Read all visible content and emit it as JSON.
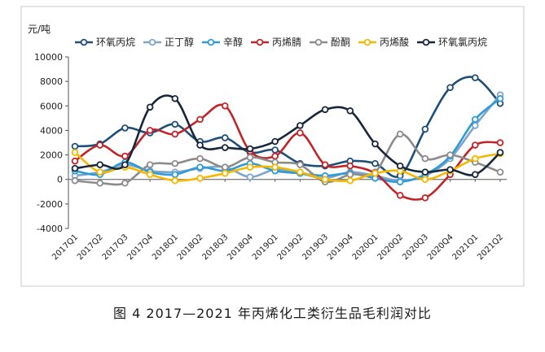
{
  "figure": {
    "caption": "图 4  2017—2021 年丙烯化工类衍生品毛利润对比"
  },
  "chart_data": {
    "type": "line",
    "unit_label": "元/吨",
    "ylim": [
      -4000,
      10000
    ],
    "yticks": [
      -4000,
      -2000,
      0,
      2000,
      4000,
      6000,
      8000,
      10000
    ],
    "legend_position": "top",
    "grid": false,
    "categories": [
      "2017Q1",
      "2017Q2",
      "2017Q3",
      "2017Q4",
      "2018Q1",
      "2018Q2",
      "2018Q3",
      "2018Q4",
      "2019Q1",
      "2019Q2",
      "2019Q3",
      "2019Q4",
      "2020Q1",
      "2020Q2",
      "2020Q3",
      "2020Q4",
      "2021Q1",
      "2021Q2"
    ],
    "series": [
      {
        "name": "环氧丙烷",
        "color": "#1f4e79",
        "values": [
          2700,
          2900,
          4200,
          3800,
          4500,
          3100,
          3400,
          2200,
          2400,
          1300,
          1100,
          1500,
          1300,
          300,
          4100,
          7500,
          8300,
          6200
        ]
      },
      {
        "name": "正丁醇",
        "color": "#7fa6c9",
        "values": [
          300,
          600,
          1200,
          700,
          600,
          900,
          1000,
          200,
          800,
          500,
          100,
          600,
          300,
          -100,
          300,
          1700,
          4400,
          6900
        ]
      },
      {
        "name": "辛醇",
        "color": "#2e9ad8",
        "values": [
          700,
          400,
          1400,
          600,
          400,
          1000,
          700,
          1300,
          700,
          500,
          300,
          500,
          100,
          -200,
          400,
          1900,
          4900,
          6600
        ]
      },
      {
        "name": "丙烯腈",
        "color": "#c0252a",
        "values": [
          1500,
          2800,
          1900,
          4000,
          3700,
          4900,
          6000,
          2300,
          1900,
          3800,
          1200,
          1100,
          500,
          -1300,
          -1500,
          400,
          2800,
          3000
        ]
      },
      {
        "name": "酚酮",
        "color": "#8c8c8c",
        "values": [
          -100,
          -300,
          -300,
          1200,
          1300,
          1700,
          1000,
          1800,
          1400,
          1200,
          -200,
          400,
          600,
          3700,
          1700,
          2000,
          1400,
          600
        ]
      },
      {
        "name": "丙烯酸",
        "color": "#f5b800",
        "values": [
          2200,
          600,
          1000,
          400,
          -100,
          100,
          500,
          1000,
          1000,
          600,
          0,
          -100,
          500,
          700,
          0,
          700,
          1700,
          2100
        ]
      },
      {
        "name": "环氧氯丙烷",
        "color": "#17263c",
        "values": [
          900,
          1200,
          1200,
          5900,
          6600,
          2800,
          2600,
          2500,
          3100,
          4400,
          5700,
          5600,
          2900,
          1100,
          600,
          800,
          400,
          2200
        ]
      }
    ]
  }
}
